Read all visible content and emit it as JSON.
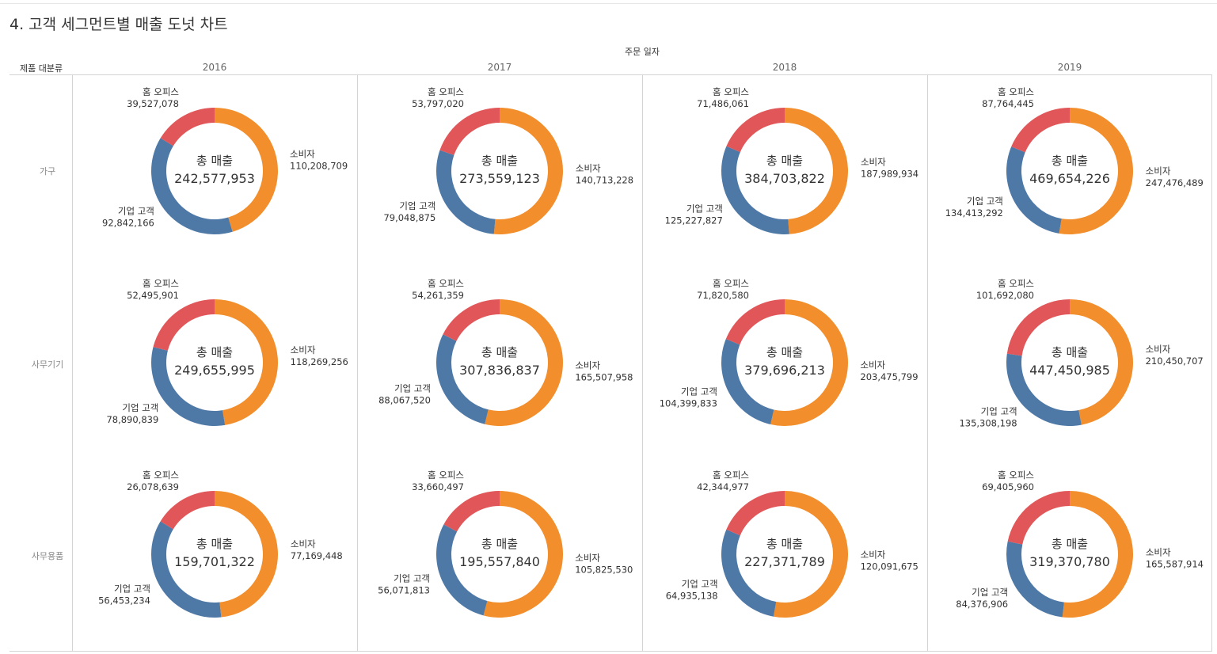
{
  "title": "4. 고객 세그먼트별 매출 도넛 차트",
  "column_field": "주문 일자",
  "row_field": "제품 대분류",
  "chart_data": {
    "type": "pie",
    "subtype": "donut-grid",
    "center_label": "총 매출",
    "segment_names": [
      "소비자",
      "기업 고객",
      "홈 오피스"
    ],
    "colors": {
      "소비자": "#f28e2b",
      "기업 고객": "#4e79a7",
      "홈 오피스": "#e15759"
    },
    "years": [
      "2016",
      "2017",
      "2018",
      "2019"
    ],
    "categories": [
      "가구",
      "사무기기",
      "사무용품"
    ],
    "cells": [
      [
        {
          "total": "242,577,953",
          "values": [
            110208709,
            92842166,
            39527078
          ],
          "labels": [
            "110,208,709",
            "92,842,166",
            "39,527,078"
          ]
        },
        {
          "total": "273,559,123",
          "values": [
            140713228,
            79048875,
            53797020
          ],
          "labels": [
            "140,713,228",
            "79,048,875",
            "53,797,020"
          ]
        },
        {
          "total": "384,703,822",
          "values": [
            187989934,
            125227827,
            71486061
          ],
          "labels": [
            "187,989,934",
            "125,227,827",
            "71,486,061"
          ]
        },
        {
          "total": "469,654,226",
          "values": [
            247476489,
            134413292,
            87764445
          ],
          "labels": [
            "247,476,489",
            "134,413,292",
            "87,764,445"
          ]
        }
      ],
      [
        {
          "total": "249,655,995",
          "values": [
            118269256,
            78890839,
            52495901
          ],
          "labels": [
            "118,269,256",
            "78,890,839",
            "52,495,901"
          ]
        },
        {
          "total": "307,836,837",
          "values": [
            165507958,
            88067520,
            54261359
          ],
          "labels": [
            "165,507,958",
            "88,067,520",
            "54,261,359"
          ]
        },
        {
          "total": "379,696,213",
          "values": [
            203475799,
            104399833,
            71820580
          ],
          "labels": [
            "203,475,799",
            "104,399,833",
            "71,820,580"
          ]
        },
        {
          "total": "447,450,985",
          "values": [
            210450707,
            135308198,
            101692080
          ],
          "labels": [
            "210,450,707",
            "135,308,198",
            "101,692,080"
          ]
        }
      ],
      [
        {
          "total": "159,701,322",
          "values": [
            77169448,
            56453234,
            26078639
          ],
          "labels": [
            "77,169,448",
            "56,453,234",
            "26,078,639"
          ]
        },
        {
          "total": "195,557,840",
          "values": [
            105825530,
            56071813,
            33660497
          ],
          "labels": [
            "105,825,530",
            "56,071,813",
            "33,660,497"
          ]
        },
        {
          "total": "227,371,789",
          "values": [
            120091675,
            64935138,
            42344977
          ],
          "labels": [
            "120,091,675",
            "64,935,138",
            "42,344,977"
          ]
        },
        {
          "total": "319,370,780",
          "values": [
            165587914,
            84376906,
            69405960
          ],
          "labels": [
            "165,587,914",
            "84,376,906",
            "69,405,960"
          ]
        }
      ]
    ]
  }
}
